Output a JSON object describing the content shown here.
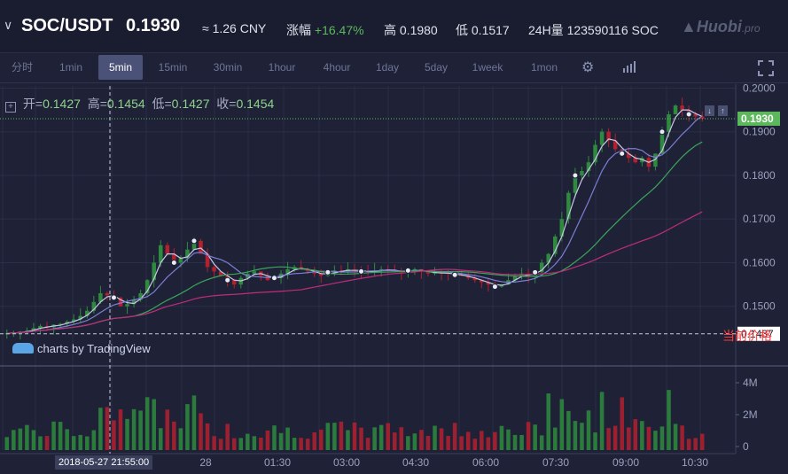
{
  "header": {
    "pair": "SOC/USDT",
    "price": "0.1930",
    "cny": "≈ 1.26 CNY",
    "change_label": "涨幅",
    "change_value": "+16.47%",
    "high_label": "高",
    "high_value": "0.1980",
    "low_label": "低",
    "low_value": "0.1517",
    "volume_label": "24H量",
    "volume_value": "123590116 SOC",
    "logo": "Huobi",
    "logo_suffix": ".pro"
  },
  "toolbar": {
    "timeframes": [
      "分时",
      "1min",
      "5min",
      "15min",
      "30min",
      "1hour",
      "4hour",
      "1day",
      "5day",
      "1week",
      "1mon"
    ],
    "active": "5min",
    "settings_icon": "gear-icon",
    "indicators_icon": "bar-chart-icon",
    "fullscreen_icon": "fullscreen-icon"
  },
  "legend": {
    "open_label": "开",
    "open": "0.1427",
    "high_label": "高",
    "high": "0.1454",
    "low_label": "低",
    "low": "0.1427",
    "close_label": "收",
    "close": "0.1454"
  },
  "watermark": "charts by TradingView",
  "current_price_label": "当前价格",
  "crosshair_time": "2018-05-27 21:55:00",
  "colors": {
    "up": "#2e8b3e",
    "down": "#b3202e",
    "ma1": "#c8c8e8",
    "ma2": "#7a7fd6",
    "ma3": "#3aa55a",
    "ma4": "#c02c7a",
    "last_price": "#5cb85c",
    "crosshair_price": "#ffffff"
  },
  "chart_data": {
    "type": "candlestick",
    "price_axis_ticks": [
      "0.2000",
      "0.1900",
      "0.1800",
      "0.1700",
      "0.1600",
      "0.1500"
    ],
    "price_ylim": [
      0.14,
      0.2005
    ],
    "last_price": "0.1930",
    "crosshair_price": "0.1437",
    "volume_axis_ticks": [
      "4M",
      "2M",
      "0"
    ],
    "time_axis_ticks": [
      "28",
      "01:30",
      "03:00",
      "04:30",
      "06:00",
      "07:30",
      "09:00",
      "10:30"
    ],
    "close_path": [
      0.1438,
      0.144,
      0.1442,
      0.1444,
      0.145,
      0.1455,
      0.1452,
      0.1458,
      0.146,
      0.1465,
      0.147,
      0.1478,
      0.149,
      0.151,
      0.153,
      0.1525,
      0.152,
      0.15,
      0.1505,
      0.1515,
      0.153,
      0.156,
      0.16,
      0.164,
      0.162,
      0.16,
      0.161,
      0.163,
      0.165,
      0.162,
      0.159,
      0.158,
      0.157,
      0.156,
      0.155,
      0.1565,
      0.1575,
      0.158,
      0.157,
      0.156,
      0.1565,
      0.1575,
      0.1585,
      0.159,
      0.1585,
      0.158,
      0.1575,
      0.157,
      0.1578,
      0.1582,
      0.158,
      0.1585,
      0.1582,
      0.158,
      0.1578,
      0.1582,
      0.1585,
      0.1583,
      0.158,
      0.1578,
      0.1582,
      0.1585,
      0.158,
      0.1575,
      0.1578,
      0.1576,
      0.1574,
      0.1572,
      0.157,
      0.1565,
      0.156,
      0.1555,
      0.155,
      0.1545,
      0.155,
      0.156,
      0.157,
      0.1575,
      0.157,
      0.1578,
      0.16,
      0.162,
      0.166,
      0.17,
      0.176,
      0.18,
      0.181,
      0.183,
      0.187,
      0.19,
      0.188,
      0.186,
      0.185,
      0.184,
      0.183,
      0.184,
      0.182,
      0.185,
      0.19,
      0.194,
      0.196,
      0.195,
      0.194,
      0.1935,
      0.193
    ]
  }
}
